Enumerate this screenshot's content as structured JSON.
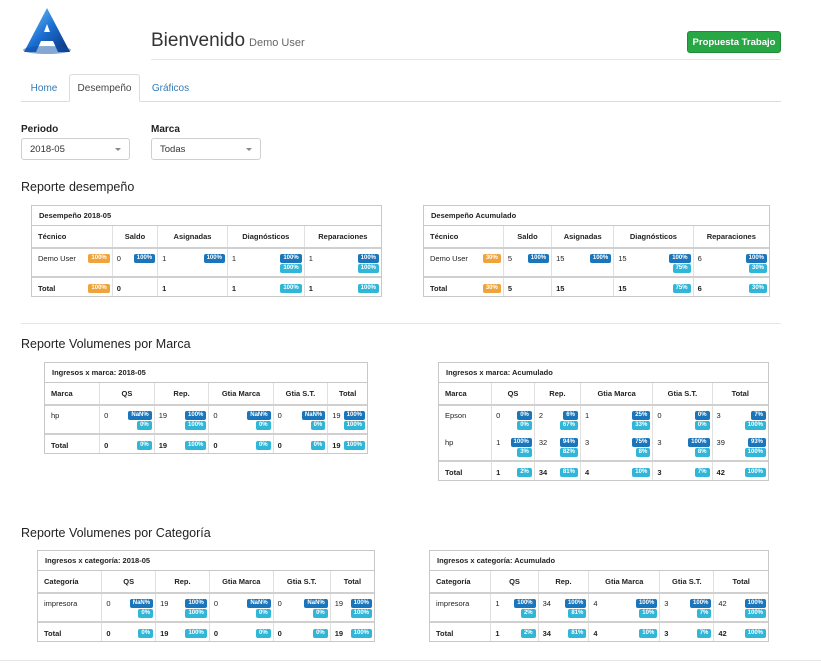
{
  "header": {
    "title": "Bienvenido",
    "user": "Demo User",
    "action_button": "Propuesta Trabajo"
  },
  "tabs": [
    {
      "label": "Home",
      "active": false
    },
    {
      "label": "Desempeño",
      "active": true
    },
    {
      "label": "Gráficos",
      "active": false
    }
  ],
  "filters": {
    "periodo": {
      "label": "Periodo",
      "value": "2018-05"
    },
    "marca": {
      "label": "Marca",
      "value": "Todas"
    }
  },
  "sections": {
    "desempeno": "Reporte desempeño",
    "marca": "Reporte Volumenes por Marca",
    "categoria": "Reporte Volumenes por Categoría"
  },
  "colors": {
    "blue_badge": "#1a75bb",
    "cyan_badge": "#31b6d8",
    "orange_badge": "#f0a33a",
    "green_button": "#28a745"
  },
  "tables": {
    "des_period": {
      "title": "Desempeño 2018-05",
      "columns": [
        "Técnico",
        "Saldo",
        "Asignadas",
        "Diagnósticos",
        "Reparaciones"
      ],
      "rows": [
        {
          "total": false,
          "cells": [
            {
              "text": "Demo User",
              "badges": [
                {
                  "t": "100%",
                  "c": "o"
                }
              ]
            },
            {
              "text": "0",
              "badges": [
                {
                  "t": "100%",
                  "c": "b"
                }
              ]
            },
            {
              "text": "1",
              "badges": [
                {
                  "t": "100%",
                  "c": "b"
                }
              ]
            },
            {
              "text": "1",
              "badges": [
                {
                  "t": "100%",
                  "c": "b"
                },
                {
                  "t": "100%",
                  "c": "c"
                }
              ]
            },
            {
              "text": "1",
              "badges": [
                {
                  "t": "100%",
                  "c": "b"
                },
                {
                  "t": "100%",
                  "c": "c"
                }
              ]
            }
          ]
        },
        {
          "total": true,
          "cells": [
            {
              "text": "Total",
              "badges": [
                {
                  "t": "100%",
                  "c": "o"
                }
              ]
            },
            {
              "text": "0",
              "badges": []
            },
            {
              "text": "1",
              "badges": []
            },
            {
              "text": "1",
              "badges": [
                {
                  "t": "100%",
                  "c": "c"
                }
              ]
            },
            {
              "text": "1",
              "badges": [
                {
                  "t": "100%",
                  "c": "c"
                }
              ]
            }
          ]
        }
      ]
    },
    "des_acum": {
      "title": "Desempeño Acumulado",
      "columns": [
        "Técnico",
        "Saldo",
        "Asignadas",
        "Diagnósticos",
        "Reparaciones"
      ],
      "rows": [
        {
          "total": false,
          "cells": [
            {
              "text": "Demo User",
              "badges": [
                {
                  "t": "30%",
                  "c": "o"
                }
              ]
            },
            {
              "text": "5",
              "badges": [
                {
                  "t": "100%",
                  "c": "b"
                }
              ]
            },
            {
              "text": "15",
              "badges": [
                {
                  "t": "100%",
                  "c": "b"
                }
              ]
            },
            {
              "text": "15",
              "badges": [
                {
                  "t": "100%",
                  "c": "b"
                },
                {
                  "t": "75%",
                  "c": "c"
                }
              ]
            },
            {
              "text": "6",
              "badges": [
                {
                  "t": "100%",
                  "c": "b"
                },
                {
                  "t": "30%",
                  "c": "c"
                }
              ]
            }
          ]
        },
        {
          "total": true,
          "cells": [
            {
              "text": "Total",
              "badges": [
                {
                  "t": "30%",
                  "c": "o"
                }
              ]
            },
            {
              "text": "5",
              "badges": []
            },
            {
              "text": "15",
              "badges": []
            },
            {
              "text": "15",
              "badges": [
                {
                  "t": "75%",
                  "c": "c"
                }
              ]
            },
            {
              "text": "6",
              "badges": [
                {
                  "t": "30%",
                  "c": "c"
                }
              ]
            }
          ]
        }
      ]
    },
    "marca_period": {
      "title": "Ingresos x marca: 2018-05",
      "columns": [
        "Marca",
        "QS",
        "Rep.",
        "Gtia Marca",
        "Gtia S.T.",
        "Total"
      ],
      "rows": [
        {
          "total": false,
          "cells": [
            {
              "text": "hp",
              "badges": []
            },
            {
              "text": "0",
              "badges": [
                {
                  "t": "NaN%",
                  "c": "b"
                },
                {
                  "t": "0%",
                  "c": "c"
                }
              ]
            },
            {
              "text": "19",
              "badges": [
                {
                  "t": "100%",
                  "c": "b"
                },
                {
                  "t": "100%",
                  "c": "c"
                }
              ]
            },
            {
              "text": "0",
              "badges": [
                {
                  "t": "NaN%",
                  "c": "b"
                },
                {
                  "t": "0%",
                  "c": "c"
                }
              ]
            },
            {
              "text": "0",
              "badges": [
                {
                  "t": "NaN%",
                  "c": "b"
                },
                {
                  "t": "0%",
                  "c": "c"
                }
              ]
            },
            {
              "text": "19",
              "badges": [
                {
                  "t": "100%",
                  "c": "b"
                },
                {
                  "t": "100%",
                  "c": "c"
                }
              ]
            }
          ]
        },
        {
          "total": true,
          "cells": [
            {
              "text": "Total",
              "badges": []
            },
            {
              "text": "0",
              "badges": [
                {
                  "t": "0%",
                  "c": "c"
                }
              ]
            },
            {
              "text": "19",
              "badges": [
                {
                  "t": "100%",
                  "c": "c"
                }
              ]
            },
            {
              "text": "0",
              "badges": [
                {
                  "t": "0%",
                  "c": "c"
                }
              ]
            },
            {
              "text": "0",
              "badges": [
                {
                  "t": "0%",
                  "c": "c"
                }
              ]
            },
            {
              "text": "19",
              "badges": [
                {
                  "t": "100%",
                  "c": "c"
                }
              ]
            }
          ]
        }
      ]
    },
    "marca_acum": {
      "title": "Ingresos x marca: Acumulado",
      "columns": [
        "Marca",
        "QS",
        "Rep.",
        "Gtia Marca",
        "Gtia S.T.",
        "Total"
      ],
      "rows": [
        {
          "total": false,
          "cells": [
            {
              "text": "Epson",
              "badges": []
            },
            {
              "text": "0",
              "badges": [
                {
                  "t": "0%",
                  "c": "b"
                },
                {
                  "t": "0%",
                  "c": "c"
                }
              ]
            },
            {
              "text": "2",
              "badges": [
                {
                  "t": "6%",
                  "c": "b"
                },
                {
                  "t": "67%",
                  "c": "c"
                }
              ]
            },
            {
              "text": "1",
              "badges": [
                {
                  "t": "25%",
                  "c": "b"
                },
                {
                  "t": "33%",
                  "c": "c"
                }
              ]
            },
            {
              "text": "0",
              "badges": [
                {
                  "t": "0%",
                  "c": "b"
                },
                {
                  "t": "0%",
                  "c": "c"
                }
              ]
            },
            {
              "text": "3",
              "badges": [
                {
                  "t": "7%",
                  "c": "b"
                },
                {
                  "t": "100%",
                  "c": "c"
                }
              ]
            }
          ]
        },
        {
          "total": false,
          "cells": [
            {
              "text": "hp",
              "badges": []
            },
            {
              "text": "1",
              "badges": [
                {
                  "t": "100%",
                  "c": "b"
                },
                {
                  "t": "3%",
                  "c": "c"
                }
              ]
            },
            {
              "text": "32",
              "badges": [
                {
                  "t": "94%",
                  "c": "b"
                },
                {
                  "t": "82%",
                  "c": "c"
                }
              ]
            },
            {
              "text": "3",
              "badges": [
                {
                  "t": "75%",
                  "c": "b"
                },
                {
                  "t": "8%",
                  "c": "c"
                }
              ]
            },
            {
              "text": "3",
              "badges": [
                {
                  "t": "100%",
                  "c": "b"
                },
                {
                  "t": "8%",
                  "c": "c"
                }
              ]
            },
            {
              "text": "39",
              "badges": [
                {
                  "t": "93%",
                  "c": "b"
                },
                {
                  "t": "100%",
                  "c": "c"
                }
              ]
            }
          ]
        },
        {
          "total": true,
          "cells": [
            {
              "text": "Total",
              "badges": []
            },
            {
              "text": "1",
              "badges": [
                {
                  "t": "2%",
                  "c": "c"
                }
              ]
            },
            {
              "text": "34",
              "badges": [
                {
                  "t": "81%",
                  "c": "c"
                }
              ]
            },
            {
              "text": "4",
              "badges": [
                {
                  "t": "10%",
                  "c": "c"
                }
              ]
            },
            {
              "text": "3",
              "badges": [
                {
                  "t": "7%",
                  "c": "c"
                }
              ]
            },
            {
              "text": "42",
              "badges": [
                {
                  "t": "100%",
                  "c": "c"
                }
              ]
            }
          ]
        }
      ]
    },
    "cat_period": {
      "title": "Ingresos x categoría: 2018-05",
      "columns": [
        "Categoría",
        "QS",
        "Rep.",
        "Gtia Marca",
        "Gtia S.T.",
        "Total"
      ],
      "rows": [
        {
          "total": false,
          "cells": [
            {
              "text": "impresora",
              "badges": []
            },
            {
              "text": "0",
              "badges": [
                {
                  "t": "NaN%",
                  "c": "b"
                },
                {
                  "t": "0%",
                  "c": "c"
                }
              ]
            },
            {
              "text": "19",
              "badges": [
                {
                  "t": "100%",
                  "c": "b"
                },
                {
                  "t": "100%",
                  "c": "c"
                }
              ]
            },
            {
              "text": "0",
              "badges": [
                {
                  "t": "NaN%",
                  "c": "b"
                },
                {
                  "t": "0%",
                  "c": "c"
                }
              ]
            },
            {
              "text": "0",
              "badges": [
                {
                  "t": "NaN%",
                  "c": "b"
                },
                {
                  "t": "0%",
                  "c": "c"
                }
              ]
            },
            {
              "text": "19",
              "badges": [
                {
                  "t": "100%",
                  "c": "b"
                },
                {
                  "t": "100%",
                  "c": "c"
                }
              ]
            }
          ]
        },
        {
          "total": true,
          "cells": [
            {
              "text": "Total",
              "badges": []
            },
            {
              "text": "0",
              "badges": [
                {
                  "t": "0%",
                  "c": "c"
                }
              ]
            },
            {
              "text": "19",
              "badges": [
                {
                  "t": "100%",
                  "c": "c"
                }
              ]
            },
            {
              "text": "0",
              "badges": [
                {
                  "t": "0%",
                  "c": "c"
                }
              ]
            },
            {
              "text": "0",
              "badges": [
                {
                  "t": "0%",
                  "c": "c"
                }
              ]
            },
            {
              "text": "19",
              "badges": [
                {
                  "t": "100%",
                  "c": "c"
                }
              ]
            }
          ]
        }
      ]
    },
    "cat_acum": {
      "title": "Ingresos x categoría: Acumulado",
      "columns": [
        "Categoría",
        "QS",
        "Rep.",
        "Gtia Marca",
        "Gtia S.T.",
        "Total"
      ],
      "rows": [
        {
          "total": false,
          "cells": [
            {
              "text": "impresora",
              "badges": []
            },
            {
              "text": "1",
              "badges": [
                {
                  "t": "100%",
                  "c": "b"
                },
                {
                  "t": "2%",
                  "c": "c"
                }
              ]
            },
            {
              "text": "34",
              "badges": [
                {
                  "t": "100%",
                  "c": "b"
                },
                {
                  "t": "81%",
                  "c": "c"
                }
              ]
            },
            {
              "text": "4",
              "badges": [
                {
                  "t": "100%",
                  "c": "b"
                },
                {
                  "t": "10%",
                  "c": "c"
                }
              ]
            },
            {
              "text": "3",
              "badges": [
                {
                  "t": "100%",
                  "c": "b"
                },
                {
                  "t": "7%",
                  "c": "c"
                }
              ]
            },
            {
              "text": "42",
              "badges": [
                {
                  "t": "100%",
                  "c": "b"
                },
                {
                  "t": "100%",
                  "c": "c"
                }
              ]
            }
          ]
        },
        {
          "total": true,
          "cells": [
            {
              "text": "Total",
              "badges": []
            },
            {
              "text": "1",
              "badges": [
                {
                  "t": "2%",
                  "c": "c"
                }
              ]
            },
            {
              "text": "34",
              "badges": [
                {
                  "t": "81%",
                  "c": "c"
                }
              ]
            },
            {
              "text": "4",
              "badges": [
                {
                  "t": "10%",
                  "c": "c"
                }
              ]
            },
            {
              "text": "3",
              "badges": [
                {
                  "t": "7%",
                  "c": "c"
                }
              ]
            },
            {
              "text": "42",
              "badges": [
                {
                  "t": "100%",
                  "c": "c"
                }
              ]
            }
          ]
        }
      ]
    }
  }
}
